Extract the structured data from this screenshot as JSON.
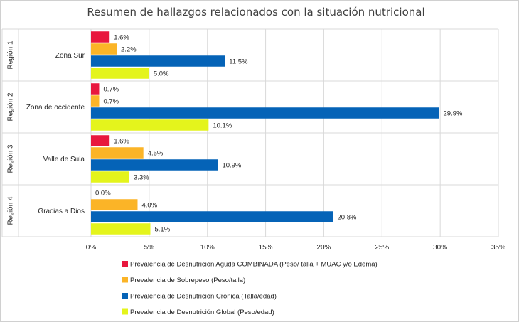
{
  "chart_data": {
    "type": "bar",
    "orientation": "horizontal",
    "title": "Resumen de hallazgos relacionados con la situación nutricional",
    "groups": [
      {
        "region": "Región 1",
        "category": "Zona Sur"
      },
      {
        "region": "Región 2",
        "category": "Zona de occidente"
      },
      {
        "region": "Región 3",
        "category": "Valle de Sula"
      },
      {
        "region": "Región 4",
        "category": "Gracias a Dios"
      }
    ],
    "series": [
      {
        "name": "Prevalencia de Desnutrición Aguda COMBINADA (Peso/ talla + MUAC y/o Edema)",
        "color": "#e8173d",
        "values": [
          1.6,
          0.7,
          1.6,
          0.0
        ],
        "labels": [
          "1.6%",
          "0.7%",
          "1.6%",
          "0.0%"
        ]
      },
      {
        "name": "Prevalencia de Sobrepeso (Peso/talla)",
        "color": "#fbb427",
        "values": [
          2.2,
          0.7,
          4.5,
          4.0
        ],
        "labels": [
          "2.2%",
          "0.7%",
          "4.5%",
          "4.0%"
        ]
      },
      {
        "name": "Prevalencia de Desnutrición Crónica (Talla/edad)",
        "color": "#0563b7",
        "values": [
          11.5,
          29.9,
          10.9,
          20.8
        ],
        "labels": [
          "11.5%",
          "29.9%",
          "10.9%",
          "20.8%"
        ]
      },
      {
        "name": "Prevalencia de Desnutrición Global (Peso/edad)",
        "color": "#e4f41c",
        "values": [
          5.0,
          10.1,
          3.3,
          5.1
        ],
        "labels": [
          "5.0%",
          "10.1%",
          "3.3%",
          "5.1%"
        ]
      }
    ],
    "xlim": [
      0,
      35
    ],
    "xticks": [
      "0%",
      "5%",
      "10%",
      "15%",
      "20%",
      "25%",
      "30%",
      "35%"
    ],
    "grid": true,
    "legend_position": "bottom"
  }
}
